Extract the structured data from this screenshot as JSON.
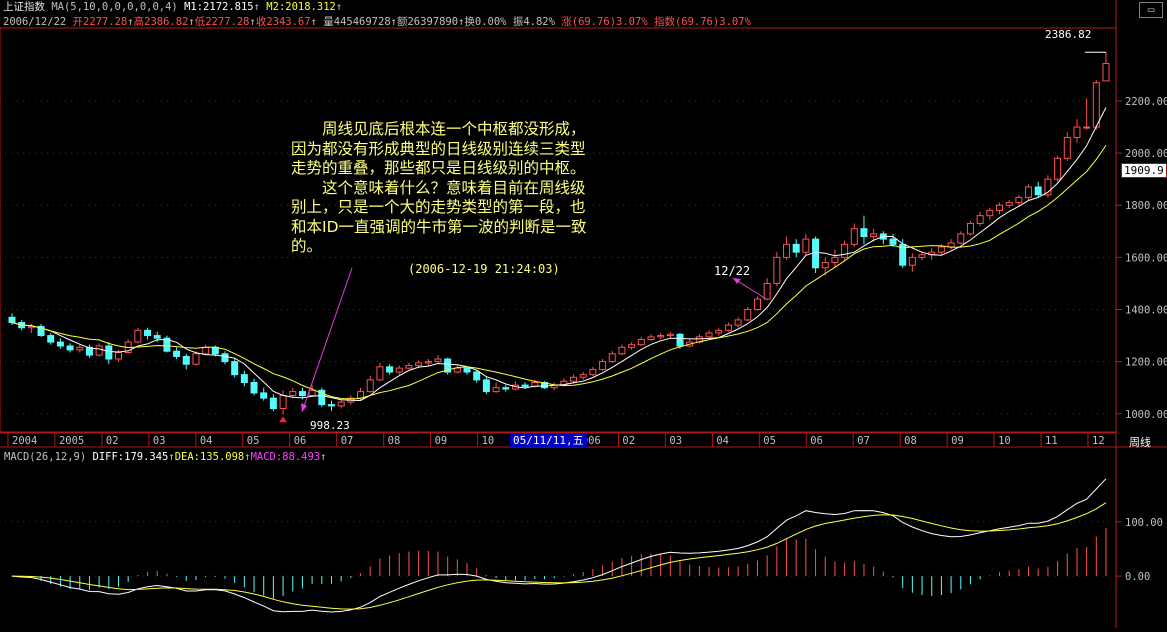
{
  "header": {
    "index_name": "上证指数",
    "ma_label": "MA(5,10,0,0,0,0,0,4)",
    "m1": "M1:2172.815",
    "m2": "M2:2018.312",
    "date": "2006/12/22",
    "open": "开2277.28",
    "high": "高2386.82",
    "low": "低2277.28",
    "close": "收2343.67",
    "volume": "量445469728",
    "amount": "额26397890",
    "turnover": "换0.00%",
    "amplitude": "振4.82%",
    "change": "涨(69.76)3.07%",
    "index_change": "指数(69.76)3.07%"
  },
  "annotation": {
    "lines": [
      {
        "text": "周线见底后根本连一个中枢都没形成，",
        "indent": true
      },
      {
        "text": "因为都没有形成典型的日线级别连续三类型",
        "indent": false
      },
      {
        "text": "走势的重叠，那些都只是日线级别的中枢。",
        "indent": false
      },
      {
        "text": "这个意味着什么？意味着目前在周线级",
        "indent": true
      },
      {
        "text": "别上，只是一个大的走势类型的第一段，也",
        "indent": false
      },
      {
        "text": "和本ID一直强调的牛市第一波的判断是一致",
        "indent": false
      },
      {
        "text": "的。",
        "indent": false
      }
    ],
    "timestamp": "(2006-12-19 21:24:03)"
  },
  "labels": {
    "high_marker": "2386.82",
    "low_marker": "998.23",
    "date_marker": "12/22",
    "last_price": "1909.9",
    "crosshair_date": "05/11/11,五",
    "period": "周线"
  },
  "macd_header": {
    "name": "MACD(26,12,9)",
    "diff": "DIFF:179.345",
    "dea": "DEA:135.098",
    "macd": "MACD:88.493"
  },
  "colors": {
    "up": "#ff5050",
    "down": "#54fcfc",
    "ma1": "#ffffff",
    "ma2": "#ffff40",
    "axis": "#b01818",
    "text": "#c0c0c0",
    "annotation": "#ffff80",
    "arrow": "#e040e0",
    "macd": "#ff40ff"
  },
  "chart_data": [
    {
      "type": "candlestick",
      "title": "上证指数",
      "period": "weekly",
      "x_tick_labels": [
        "2004",
        "2005",
        "02",
        "03",
        "04",
        "05",
        "06",
        "07",
        "08",
        "09",
        "10",
        "11",
        "2006",
        "02",
        "03",
        "04",
        "05",
        "06",
        "07",
        "08",
        "09",
        "10",
        "11",
        "12"
      ],
      "y_ticks": [
        1000,
        1200,
        1400,
        1600,
        1800,
        2000,
        2200
      ],
      "ylim": [
        930,
        2480
      ],
      "annotations": [
        {
          "text": "2386.82",
          "value": 2386.82
        },
        {
          "text": "998.23",
          "value": 998.23
        },
        {
          "text": "12/22"
        }
      ],
      "candles": [
        {
          "o": 1370,
          "c": 1350,
          "h": 1385,
          "l": 1340
        },
        {
          "o": 1350,
          "c": 1330,
          "h": 1360,
          "l": 1320
        },
        {
          "o": 1330,
          "c": 1335,
          "h": 1345,
          "l": 1310
        },
        {
          "o": 1335,
          "c": 1300,
          "h": 1345,
          "l": 1295
        },
        {
          "o": 1300,
          "c": 1275,
          "h": 1310,
          "l": 1265
        },
        {
          "o": 1275,
          "c": 1260,
          "h": 1290,
          "l": 1250
        },
        {
          "o": 1260,
          "c": 1245,
          "h": 1270,
          "l": 1235
        },
        {
          "o": 1245,
          "c": 1255,
          "h": 1265,
          "l": 1235
        },
        {
          "o": 1255,
          "c": 1225,
          "h": 1265,
          "l": 1215
        },
        {
          "o": 1225,
          "c": 1260,
          "h": 1270,
          "l": 1220
        },
        {
          "o": 1260,
          "c": 1210,
          "h": 1275,
          "l": 1190
        },
        {
          "o": 1210,
          "c": 1235,
          "h": 1245,
          "l": 1200
        },
        {
          "o": 1235,
          "c": 1275,
          "h": 1285,
          "l": 1230
        },
        {
          "o": 1275,
          "c": 1320,
          "h": 1330,
          "l": 1270
        },
        {
          "o": 1320,
          "c": 1300,
          "h": 1330,
          "l": 1285
        },
        {
          "o": 1300,
          "c": 1290,
          "h": 1315,
          "l": 1275
        },
        {
          "o": 1290,
          "c": 1240,
          "h": 1300,
          "l": 1235
        },
        {
          "o": 1240,
          "c": 1220,
          "h": 1255,
          "l": 1210
        },
        {
          "o": 1220,
          "c": 1190,
          "h": 1230,
          "l": 1170
        },
        {
          "o": 1190,
          "c": 1230,
          "h": 1240,
          "l": 1185
        },
        {
          "o": 1230,
          "c": 1255,
          "h": 1265,
          "l": 1225
        },
        {
          "o": 1255,
          "c": 1230,
          "h": 1262,
          "l": 1220
        },
        {
          "o": 1230,
          "c": 1200,
          "h": 1240,
          "l": 1190
        },
        {
          "o": 1200,
          "c": 1150,
          "h": 1210,
          "l": 1140
        },
        {
          "o": 1150,
          "c": 1120,
          "h": 1165,
          "l": 1105
        },
        {
          "o": 1120,
          "c": 1080,
          "h": 1135,
          "l": 1070
        },
        {
          "o": 1080,
          "c": 1060,
          "h": 1100,
          "l": 1050
        },
        {
          "o": 1060,
          "c": 1020,
          "h": 1075,
          "l": 1010
        },
        {
          "o": 1020,
          "c": 1070,
          "h": 1090,
          "l": 998
        },
        {
          "o": 1070,
          "c": 1085,
          "h": 1100,
          "l": 1060
        },
        {
          "o": 1085,
          "c": 1070,
          "h": 1100,
          "l": 1055
        },
        {
          "o": 1070,
          "c": 1090,
          "h": 1110,
          "l": 1065
        },
        {
          "o": 1090,
          "c": 1035,
          "h": 1100,
          "l": 1025
        },
        {
          "o": 1035,
          "c": 1030,
          "h": 1050,
          "l": 1010
        },
        {
          "o": 1030,
          "c": 1045,
          "h": 1055,
          "l": 1020
        },
        {
          "o": 1045,
          "c": 1060,
          "h": 1070,
          "l": 1035
        },
        {
          "o": 1060,
          "c": 1085,
          "h": 1100,
          "l": 1050
        },
        {
          "o": 1085,
          "c": 1130,
          "h": 1145,
          "l": 1080
        },
        {
          "o": 1130,
          "c": 1180,
          "h": 1195,
          "l": 1125
        },
        {
          "o": 1180,
          "c": 1160,
          "h": 1190,
          "l": 1150
        },
        {
          "o": 1160,
          "c": 1175,
          "h": 1185,
          "l": 1150
        },
        {
          "o": 1175,
          "c": 1185,
          "h": 1195,
          "l": 1170
        },
        {
          "o": 1185,
          "c": 1195,
          "h": 1205,
          "l": 1175
        },
        {
          "o": 1195,
          "c": 1200,
          "h": 1210,
          "l": 1185
        },
        {
          "o": 1200,
          "c": 1210,
          "h": 1225,
          "l": 1195
        },
        {
          "o": 1210,
          "c": 1160,
          "h": 1215,
          "l": 1150
        },
        {
          "o": 1160,
          "c": 1175,
          "h": 1185,
          "l": 1155
        },
        {
          "o": 1175,
          "c": 1160,
          "h": 1180,
          "l": 1150
        },
        {
          "o": 1160,
          "c": 1130,
          "h": 1170,
          "l": 1120
        },
        {
          "o": 1130,
          "c": 1085,
          "h": 1145,
          "l": 1075
        },
        {
          "o": 1085,
          "c": 1100,
          "h": 1120,
          "l": 1080
        },
        {
          "o": 1100,
          "c": 1095,
          "h": 1110,
          "l": 1085
        },
        {
          "o": 1095,
          "c": 1110,
          "h": 1125,
          "l": 1090
        },
        {
          "o": 1110,
          "c": 1105,
          "h": 1120,
          "l": 1095
        },
        {
          "o": 1105,
          "c": 1120,
          "h": 1130,
          "l": 1100
        },
        {
          "o": 1120,
          "c": 1100,
          "h": 1125,
          "l": 1095
        },
        {
          "o": 1100,
          "c": 1110,
          "h": 1120,
          "l": 1090
        },
        {
          "o": 1110,
          "c": 1125,
          "h": 1135,
          "l": 1105
        },
        {
          "o": 1125,
          "c": 1140,
          "h": 1150,
          "l": 1115
        },
        {
          "o": 1140,
          "c": 1150,
          "h": 1160,
          "l": 1130
        },
        {
          "o": 1150,
          "c": 1170,
          "h": 1180,
          "l": 1145
        },
        {
          "o": 1170,
          "c": 1200,
          "h": 1210,
          "l": 1165
        },
        {
          "o": 1200,
          "c": 1230,
          "h": 1240,
          "l": 1195
        },
        {
          "o": 1230,
          "c": 1255,
          "h": 1265,
          "l": 1225
        },
        {
          "o": 1255,
          "c": 1265,
          "h": 1275,
          "l": 1245
        },
        {
          "o": 1265,
          "c": 1285,
          "h": 1295,
          "l": 1260
        },
        {
          "o": 1285,
          "c": 1295,
          "h": 1305,
          "l": 1280
        },
        {
          "o": 1295,
          "c": 1300,
          "h": 1310,
          "l": 1285
        },
        {
          "o": 1300,
          "c": 1305,
          "h": 1315,
          "l": 1290
        },
        {
          "o": 1305,
          "c": 1260,
          "h": 1310,
          "l": 1250
        },
        {
          "o": 1260,
          "c": 1275,
          "h": 1285,
          "l": 1255
        },
        {
          "o": 1275,
          "c": 1295,
          "h": 1305,
          "l": 1270
        },
        {
          "o": 1295,
          "c": 1310,
          "h": 1320,
          "l": 1290
        },
        {
          "o": 1310,
          "c": 1320,
          "h": 1330,
          "l": 1300
        },
        {
          "o": 1320,
          "c": 1340,
          "h": 1350,
          "l": 1315
        },
        {
          "o": 1340,
          "c": 1360,
          "h": 1370,
          "l": 1330
        },
        {
          "o": 1360,
          "c": 1400,
          "h": 1410,
          "l": 1355
        },
        {
          "o": 1400,
          "c": 1440,
          "h": 1450,
          "l": 1395
        },
        {
          "o": 1440,
          "c": 1500,
          "h": 1520,
          "l": 1435
        },
        {
          "o": 1500,
          "c": 1600,
          "h": 1620,
          "l": 1490
        },
        {
          "o": 1600,
          "c": 1650,
          "h": 1680,
          "l": 1590
        },
        {
          "o": 1650,
          "c": 1620,
          "h": 1670,
          "l": 1600
        },
        {
          "o": 1620,
          "c": 1670,
          "h": 1690,
          "l": 1610
        },
        {
          "o": 1670,
          "c": 1560,
          "h": 1680,
          "l": 1540
        },
        {
          "o": 1560,
          "c": 1580,
          "h": 1600,
          "l": 1530
        },
        {
          "o": 1580,
          "c": 1600,
          "h": 1630,
          "l": 1560
        },
        {
          "o": 1600,
          "c": 1650,
          "h": 1665,
          "l": 1590
        },
        {
          "o": 1650,
          "c": 1710,
          "h": 1730,
          "l": 1640
        },
        {
          "o": 1710,
          "c": 1680,
          "h": 1760,
          "l": 1650
        },
        {
          "o": 1680,
          "c": 1690,
          "h": 1710,
          "l": 1660
        },
        {
          "o": 1690,
          "c": 1670,
          "h": 1700,
          "l": 1650
        },
        {
          "o": 1670,
          "c": 1650,
          "h": 1690,
          "l": 1640
        },
        {
          "o": 1650,
          "c": 1570,
          "h": 1670,
          "l": 1560
        },
        {
          "o": 1570,
          "c": 1600,
          "h": 1615,
          "l": 1545
        },
        {
          "o": 1600,
          "c": 1610,
          "h": 1620,
          "l": 1590
        },
        {
          "o": 1610,
          "c": 1620,
          "h": 1635,
          "l": 1590
        },
        {
          "o": 1620,
          "c": 1640,
          "h": 1650,
          "l": 1610
        },
        {
          "o": 1640,
          "c": 1655,
          "h": 1670,
          "l": 1630
        },
        {
          "o": 1655,
          "c": 1690,
          "h": 1700,
          "l": 1650
        },
        {
          "o": 1690,
          "c": 1730,
          "h": 1740,
          "l": 1685
        },
        {
          "o": 1730,
          "c": 1760,
          "h": 1775,
          "l": 1720
        },
        {
          "o": 1760,
          "c": 1780,
          "h": 1790,
          "l": 1745
        },
        {
          "o": 1780,
          "c": 1800,
          "h": 1810,
          "l": 1765
        },
        {
          "o": 1800,
          "c": 1810,
          "h": 1820,
          "l": 1790
        },
        {
          "o": 1810,
          "c": 1830,
          "h": 1840,
          "l": 1800
        },
        {
          "o": 1830,
          "c": 1870,
          "h": 1880,
          "l": 1820
        },
        {
          "o": 1870,
          "c": 1840,
          "h": 1890,
          "l": 1830
        },
        {
          "o": 1840,
          "c": 1900,
          "h": 1915,
          "l": 1830
        },
        {
          "o": 1900,
          "c": 1980,
          "h": 1990,
          "l": 1890
        },
        {
          "o": 1980,
          "c": 2060,
          "h": 2080,
          "l": 1970
        },
        {
          "o": 2060,
          "c": 2100,
          "h": 2130,
          "l": 2040
        },
        {
          "o": 2100,
          "c": 2100,
          "h": 2210,
          "l": 2090
        },
        {
          "o": 2100,
          "c": 2270,
          "h": 2280,
          "l": 2090
        },
        {
          "o": 2277,
          "c": 2344,
          "h": 2387,
          "l": 2277
        }
      ]
    },
    {
      "type": "macd",
      "title": "MACD(26,12,9)",
      "yticks": [
        0,
        100
      ],
      "ylim": [
        -90,
        210
      ],
      "series": [
        {
          "name": "DIFF",
          "final": 179.345
        },
        {
          "name": "DEA",
          "final": 135.098
        },
        {
          "name": "MACD",
          "final": 88.493
        }
      ]
    }
  ]
}
